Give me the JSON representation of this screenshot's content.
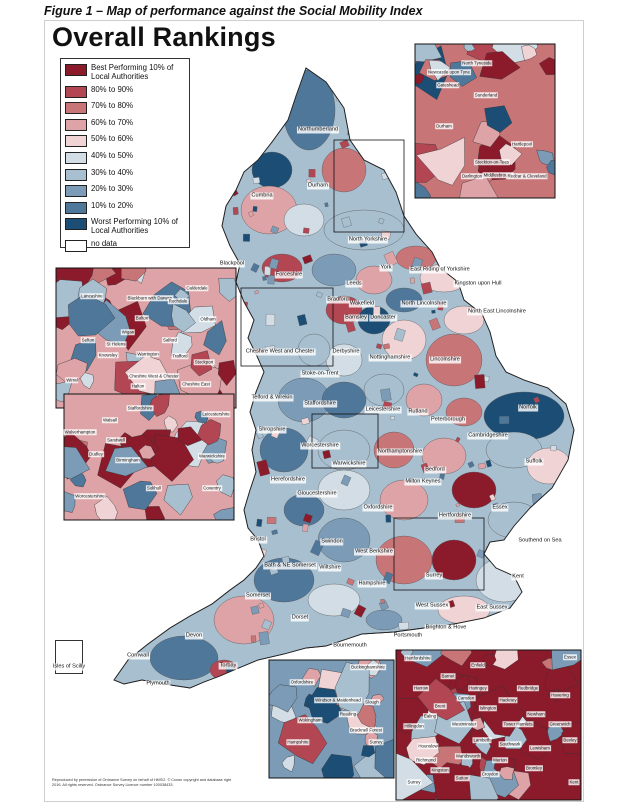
{
  "figure_caption": "Figure 1 – Map of performance against the Social Mobility Index",
  "map_title": "Overall Rankings",
  "legend": [
    {
      "label": "Best Performing 10% of Local Authorities",
      "color": "#8b1a2b"
    },
    {
      "label": "80% to 90%",
      "color": "#b24652"
    },
    {
      "label": "70% to 80%",
      "color": "#c87578"
    },
    {
      "label": "60% to 70%",
      "color": "#dda3a6"
    },
    {
      "label": "50% to 60%",
      "color": "#f0d3d5"
    },
    {
      "label": "40% to 50%",
      "color": "#d2dde6"
    },
    {
      "label": "30% to 40%",
      "color": "#a8bfd0"
    },
    {
      "label": "20% to 30%",
      "color": "#7b9bb6"
    },
    {
      "label": "10% to 20%",
      "color": "#4f779a"
    },
    {
      "label": "Worst Performing 10% of Local Authorities",
      "color": "#1c4e75"
    },
    {
      "label": "no data",
      "color": "#ffffff"
    }
  ],
  "main_labels": [
    "Northumberland",
    "Durham",
    "Cumbria",
    "North Yorkshire",
    "Blackpool",
    "Forceshire",
    "York",
    "East Riding of Yorkshire",
    "Kingston upon Hull",
    "North East Lincolnshire",
    "Leeds",
    "Wakefield",
    "Bradford",
    "Doncaster",
    "North Lincolnshire",
    "Barnsley",
    "Derbyshire",
    "Nottinghamshire",
    "Lincolnshire",
    "Cheshire West and Chester",
    "Stoke-on-Trent",
    "Staffordshire",
    "Telford & Wrekin",
    "Shropshire",
    "Leicestershire",
    "Rutland",
    "Peterborough",
    "Norfolk",
    "Cambridgeshire",
    "Suffolk",
    "Herefordshire",
    "Worcestershire",
    "Warwickshire",
    "Northamptonshire",
    "Bedford",
    "Milton Keynes",
    "Hertfordshire",
    "Gloucestershire",
    "Oxfordshire",
    "Essex",
    "Southend on Sea",
    "Bristol",
    "Swindon",
    "West Berkshire",
    "Bath & NE Somerset",
    "Wiltshire",
    "Hampshire",
    "Surrey",
    "Kent",
    "Somerset",
    "Dorset",
    "Devon",
    "Cornwall",
    "Torbay",
    "Plymouth",
    "West Sussex",
    "East Sussex",
    "Brighton & Hove",
    "Bournemouth",
    "Portsmouth",
    "Isles of Scilly"
  ],
  "inset_north_east_labels": [
    "North Tyneside",
    "Newcastle upon Tyne",
    "Gateshead",
    "Sunderland",
    "Durham",
    "Stockton-on-Tees",
    "Darlington",
    "Middlesbrough",
    "Redcar & Cleveland",
    "Hartlepool"
  ],
  "inset_north_west_labels": [
    "Lancashire",
    "Blackburn with Darwen",
    "Calderdale",
    "Rochdale",
    "Bolton",
    "Wigan",
    "Oldham",
    "St Helens",
    "Sefton",
    "Knowsley",
    "Warrington",
    "Trafford",
    "Salford",
    "Stockport",
    "Wirral",
    "Halton",
    "Cheshire East",
    "Cheshire West & Chester"
  ],
  "inset_west_midlands_labels": [
    "Staffordshire",
    "Walsall",
    "Wolverhampton",
    "Birmingham",
    "Dudley",
    "Sandwell",
    "Solihull",
    "Coventry",
    "Worcestershire",
    "Leicestershire",
    "Warwickshire"
  ],
  "inset_south_east_labels": [
    "Oxfordshire",
    "Buckinghamshire",
    "Windsor & Maidenhead",
    "Slough",
    "Wokingham",
    "Reading",
    "Bracknell Forest",
    "Surrey",
    "Hampshire"
  ],
  "inset_london_labels": [
    "Hertfordshire",
    "Enfield",
    "Essex",
    "Barnet",
    "Harrow",
    "Haringey",
    "Redbridge",
    "Brent",
    "Camden",
    "Hackney",
    "Havering",
    "Ealing",
    "Islington",
    "Newham",
    "Hillingdon",
    "Westminster",
    "Tower Hamlets",
    "Greenwich",
    "Bexley",
    "Hounslow",
    "Lambeth",
    "Southwark",
    "Lewisham",
    "Richmond",
    "Wandsworth",
    "Merton",
    "Kingston",
    "Sutton",
    "Croydon",
    "Bromley",
    "Surrey",
    "Kent"
  ],
  "footer_text": "Reproduced by permission of Ordnance Survey on behalf of HMSO. © Crown copyright and database right 2016. All rights reserved. Ordnance Survey Licence number 100038433."
}
